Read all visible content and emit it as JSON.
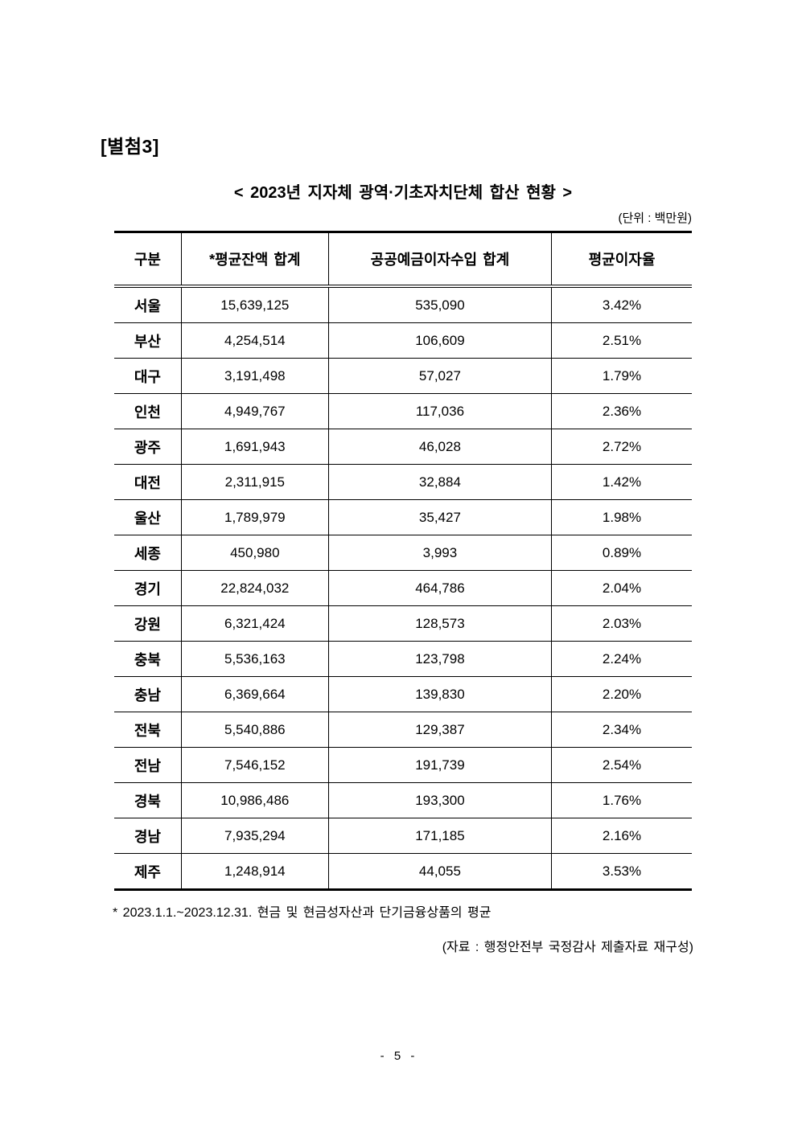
{
  "page": {
    "attachment_label": "[별첨3]",
    "title": "< 2023년 지자체 광역·기초자치단체 합산 현황 >",
    "unit_note": "(단위 : 백만원)",
    "footnote": "* 2023.1.1.~2023.12.31. 현금 및 현금성자산과 단기금융상품의 평균",
    "source_note": "(자료 : 행정안전부 국정감사 제출자료 재구성)",
    "page_number": "- 5 -"
  },
  "table": {
    "columns": [
      "구분",
      "*평균잔액 합계",
      "공공예금이자수입 합계",
      "평균이자율"
    ],
    "rows": [
      [
        "서울",
        "15,639,125",
        "535,090",
        "3.42%"
      ],
      [
        "부산",
        "4,254,514",
        "106,609",
        "2.51%"
      ],
      [
        "대구",
        "3,191,498",
        "57,027",
        "1.79%"
      ],
      [
        "인천",
        "4,949,767",
        "117,036",
        "2.36%"
      ],
      [
        "광주",
        "1,691,943",
        "46,028",
        "2.72%"
      ],
      [
        "대전",
        "2,311,915",
        "32,884",
        "1.42%"
      ],
      [
        "울산",
        "1,789,979",
        "35,427",
        "1.98%"
      ],
      [
        "세종",
        "450,980",
        "3,993",
        "0.89%"
      ],
      [
        "경기",
        "22,824,032",
        "464,786",
        "2.04%"
      ],
      [
        "강원",
        "6,321,424",
        "128,573",
        "2.03%"
      ],
      [
        "충북",
        "5,536,163",
        "123,798",
        "2.24%"
      ],
      [
        "충남",
        "6,369,664",
        "139,830",
        "2.20%"
      ],
      [
        "전북",
        "5,540,886",
        "129,387",
        "2.34%"
      ],
      [
        "전남",
        "7,546,152",
        "191,739",
        "2.54%"
      ],
      [
        "경북",
        "10,986,486",
        "193,300",
        "1.76%"
      ],
      [
        "경남",
        "7,935,294",
        "171,185",
        "2.16%"
      ],
      [
        "제주",
        "1,248,914",
        "44,055",
        "3.53%"
      ]
    ]
  }
}
